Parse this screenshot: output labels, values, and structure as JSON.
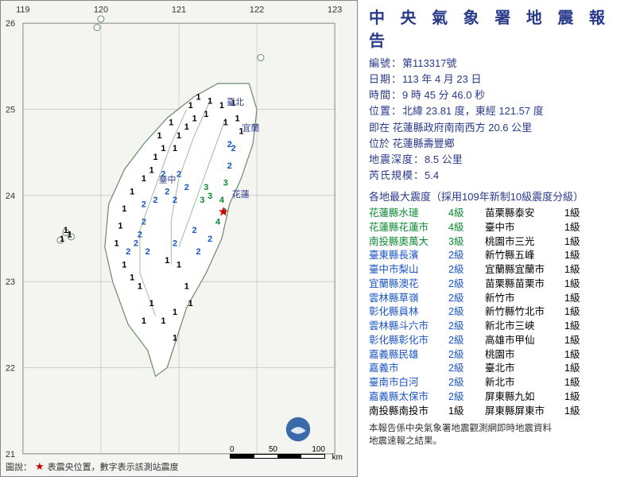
{
  "colors": {
    "primary_text": "#2a3a8a",
    "intensity": {
      "1": "#000000",
      "2": "#1a54c4",
      "3": "#0a8a2f",
      "4": "#0a8a2f"
    },
    "epicenter": "#d00000",
    "map_bg": "#f4f4f0",
    "grid": "#b8b8b8",
    "land_fill": "#ffffff",
    "land_stroke": "#6a8a6a",
    "border_green": "#3a7a3a"
  },
  "title": "中 央 氣 象 署  地 震 報 告",
  "meta": {
    "id_label": "編號：",
    "id_value": "第113317號",
    "date_label": "日期：",
    "date_value": "113 年 4 月 23 日",
    "time_label": "時間：",
    "time_value": "9 時 45 分 46.0 秒",
    "pos_label": "位置：",
    "pos_value": "北緯 23.81 度，東經 121.57 度",
    "rel_label": "",
    "rel_value": "即在 花蓮縣政府南南西方 20.6 公里",
    "loc_label": "",
    "loc_value": "位於 花蓮縣壽豐鄉",
    "depth_label": "地震深度：",
    "depth_value": "8.5 公里",
    "mag_label": "芮氏規模：",
    "mag_value": "5.4"
  },
  "intensity_heading": "各地最大震度（採用109年新制10級震度分級）",
  "intensity_left": [
    {
      "loc": "花蓮縣水璉",
      "lvl": "4級",
      "c": "4"
    },
    {
      "loc": "花蓮縣花蓮市",
      "lvl": "4級",
      "c": "4"
    },
    {
      "loc": "南投縣奧萬大",
      "lvl": "3級",
      "c": "3"
    },
    {
      "loc": "臺東縣長濱",
      "lvl": "2級",
      "c": "2"
    },
    {
      "loc": "臺中市梨山",
      "lvl": "2級",
      "c": "2"
    },
    {
      "loc": "宜蘭縣澳花",
      "lvl": "2級",
      "c": "2"
    },
    {
      "loc": "雲林縣草嶺",
      "lvl": "2級",
      "c": "2"
    },
    {
      "loc": "彰化縣員林",
      "lvl": "2級",
      "c": "2"
    },
    {
      "loc": "雲林縣斗六市",
      "lvl": "2級",
      "c": "2"
    },
    {
      "loc": "彰化縣彰化市",
      "lvl": "2級",
      "c": "2"
    },
    {
      "loc": "嘉義縣民雄",
      "lvl": "2級",
      "c": "2"
    },
    {
      "loc": "嘉義市",
      "lvl": "2級",
      "c": "2"
    },
    {
      "loc": "臺南市白河",
      "lvl": "2級",
      "c": "2"
    },
    {
      "loc": "嘉義縣太保市",
      "lvl": "2級",
      "c": "2"
    },
    {
      "loc": "南投縣南投市",
      "lvl": "1級",
      "c": "1"
    }
  ],
  "intensity_right": [
    {
      "loc": "苗栗縣泰安",
      "lvl": "1級",
      "c": "1"
    },
    {
      "loc": "臺中市",
      "lvl": "1級",
      "c": "1"
    },
    {
      "loc": "桃園市三光",
      "lvl": "1級",
      "c": "1"
    },
    {
      "loc": "新竹縣五峰",
      "lvl": "1級",
      "c": "1"
    },
    {
      "loc": "宜蘭縣宜蘭市",
      "lvl": "1級",
      "c": "1"
    },
    {
      "loc": "苗栗縣苗栗市",
      "lvl": "1級",
      "c": "1"
    },
    {
      "loc": "新竹市",
      "lvl": "1級",
      "c": "1"
    },
    {
      "loc": "新竹縣竹北市",
      "lvl": "1級",
      "c": "1"
    },
    {
      "loc": "新北市三峽",
      "lvl": "1級",
      "c": "1"
    },
    {
      "loc": "高雄市甲仙",
      "lvl": "1級",
      "c": "1"
    },
    {
      "loc": "桃園市",
      "lvl": "1級",
      "c": "1"
    },
    {
      "loc": "臺北市",
      "lvl": "1級",
      "c": "1"
    },
    {
      "loc": "新北市",
      "lvl": "1級",
      "c": "1"
    },
    {
      "loc": "屏東縣九如",
      "lvl": "1級",
      "c": "1"
    },
    {
      "loc": "屏東縣屏東市",
      "lvl": "1級",
      "c": "1"
    }
  ],
  "footnote_l1": "本報告係中央氣象署地震觀測網即時地震資料",
  "footnote_l2": "地震速報之結果。",
  "map": {
    "lon_range": [
      119,
      123
    ],
    "lat_range": [
      21,
      26
    ],
    "lon_ticks": [
      119,
      120,
      121,
      122,
      123
    ],
    "lat_ticks": [
      21,
      22,
      23,
      24,
      25,
      26
    ],
    "epicenter": {
      "lon": 121.57,
      "lat": 23.81
    },
    "city_labels": [
      {
        "name": "臺北",
        "lon": 121.55,
        "lat": 25.05
      },
      {
        "name": "宜蘭",
        "lon": 121.75,
        "lat": 24.75
      },
      {
        "name": "臺中",
        "lon": 120.68,
        "lat": 24.15
      },
      {
        "name": "花蓮",
        "lon": 121.62,
        "lat": 23.98
      }
    ],
    "stations": [
      {
        "lon": 121.55,
        "lat": 23.95,
        "v": 4
      },
      {
        "lon": 121.58,
        "lat": 23.82,
        "v": 4
      },
      {
        "lon": 121.5,
        "lat": 23.7,
        "v": 4
      },
      {
        "lon": 121.4,
        "lat": 24.0,
        "v": 3
      },
      {
        "lon": 121.3,
        "lat": 23.95,
        "v": 3
      },
      {
        "lon": 121.35,
        "lat": 24.1,
        "v": 3
      },
      {
        "lon": 121.6,
        "lat": 24.15,
        "v": 3
      },
      {
        "lon": 121.65,
        "lat": 24.35,
        "v": 2
      },
      {
        "lon": 121.7,
        "lat": 24.55,
        "v": 2
      },
      {
        "lon": 121.65,
        "lat": 24.6,
        "v": 2
      },
      {
        "lon": 121.4,
        "lat": 23.5,
        "v": 2
      },
      {
        "lon": 121.2,
        "lat": 23.6,
        "v": 2
      },
      {
        "lon": 120.95,
        "lat": 23.95,
        "v": 2
      },
      {
        "lon": 120.85,
        "lat": 24.05,
        "v": 2
      },
      {
        "lon": 120.7,
        "lat": 23.95,
        "v": 2
      },
      {
        "lon": 120.55,
        "lat": 23.9,
        "v": 2
      },
      {
        "lon": 120.55,
        "lat": 23.7,
        "v": 2
      },
      {
        "lon": 120.5,
        "lat": 23.55,
        "v": 2
      },
      {
        "lon": 120.45,
        "lat": 23.45,
        "v": 2
      },
      {
        "lon": 120.35,
        "lat": 23.35,
        "v": 2
      },
      {
        "lon": 120.6,
        "lat": 23.35,
        "v": 2
      },
      {
        "lon": 121.0,
        "lat": 24.25,
        "v": 2
      },
      {
        "lon": 121.1,
        "lat": 24.1,
        "v": 2
      },
      {
        "lon": 120.8,
        "lat": 24.25,
        "v": 2
      },
      {
        "lon": 121.55,
        "lat": 25.05,
        "v": 1
      },
      {
        "lon": 121.4,
        "lat": 25.1,
        "v": 1
      },
      {
        "lon": 121.7,
        "lat": 25.08,
        "v": 1
      },
      {
        "lon": 121.75,
        "lat": 24.9,
        "v": 1
      },
      {
        "lon": 121.8,
        "lat": 24.75,
        "v": 1
      },
      {
        "lon": 121.6,
        "lat": 24.85,
        "v": 1
      },
      {
        "lon": 121.35,
        "lat": 24.95,
        "v": 1
      },
      {
        "lon": 121.2,
        "lat": 24.9,
        "v": 1
      },
      {
        "lon": 121.1,
        "lat": 24.8,
        "v": 1
      },
      {
        "lon": 121.0,
        "lat": 24.7,
        "v": 1
      },
      {
        "lon": 120.95,
        "lat": 24.55,
        "v": 1
      },
      {
        "lon": 120.8,
        "lat": 24.55,
        "v": 1
      },
      {
        "lon": 120.7,
        "lat": 24.45,
        "v": 1
      },
      {
        "lon": 120.65,
        "lat": 24.3,
        "v": 1
      },
      {
        "lon": 120.55,
        "lat": 24.2,
        "v": 1
      },
      {
        "lon": 120.4,
        "lat": 24.05,
        "v": 1
      },
      {
        "lon": 120.3,
        "lat": 23.85,
        "v": 1
      },
      {
        "lon": 120.25,
        "lat": 23.65,
        "v": 1
      },
      {
        "lon": 120.2,
        "lat": 23.45,
        "v": 1
      },
      {
        "lon": 120.3,
        "lat": 23.2,
        "v": 1
      },
      {
        "lon": 120.4,
        "lat": 23.05,
        "v": 1
      },
      {
        "lon": 120.5,
        "lat": 22.95,
        "v": 1
      },
      {
        "lon": 120.65,
        "lat": 22.75,
        "v": 1
      },
      {
        "lon": 120.8,
        "lat": 22.55,
        "v": 1
      },
      {
        "lon": 120.95,
        "lat": 22.35,
        "v": 1
      },
      {
        "lon": 121.0,
        "lat": 23.2,
        "v": 1
      },
      {
        "lon": 121.1,
        "lat": 22.95,
        "v": 1
      },
      {
        "lon": 121.15,
        "lat": 22.75,
        "v": 1
      },
      {
        "lon": 119.6,
        "lat": 23.55,
        "v": 1
      },
      {
        "lon": 119.55,
        "lat": 23.6,
        "v": 1
      },
      {
        "lon": 119.5,
        "lat": 23.5,
        "v": 1
      },
      {
        "lon": 120.9,
        "lat": 24.85,
        "v": 1
      },
      {
        "lon": 121.25,
        "lat": 25.15,
        "v": 1
      },
      {
        "lon": 121.15,
        "lat": 25.05,
        "v": 1
      },
      {
        "lon": 120.75,
        "lat": 24.7,
        "v": 1
      },
      {
        "lon": 120.95,
        "lat": 22.65,
        "v": 1
      },
      {
        "lon": 120.55,
        "lat": 22.55,
        "v": 1
      },
      {
        "lon": 121.25,
        "lat": 23.35,
        "v": 2
      },
      {
        "lon": 120.95,
        "lat": 23.45,
        "v": 2
      },
      {
        "lon": 120.85,
        "lat": 23.25,
        "v": 1
      }
    ],
    "scalebar": {
      "labels": [
        "0",
        "50",
        "100"
      ],
      "unit": "km",
      "seg_colors": [
        "#000",
        "#fff",
        "#000",
        "#fff"
      ]
    }
  },
  "legend_text": "圖說：",
  "legend_star": "★",
  "legend_desc": "表震央位置，數字表示該測站震度"
}
